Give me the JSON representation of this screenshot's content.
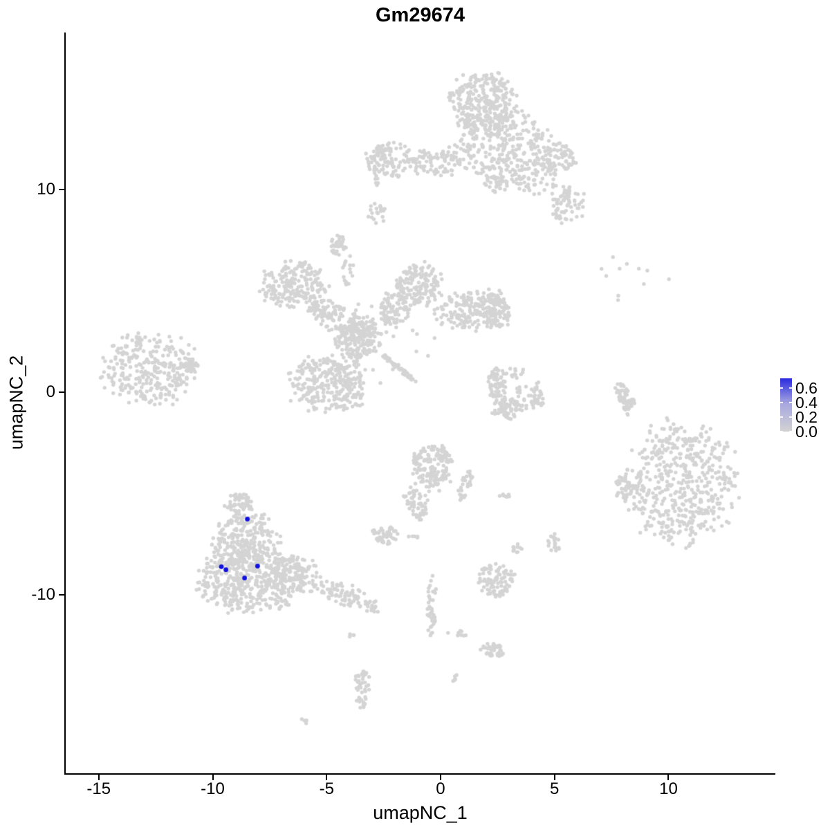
{
  "chart_data": {
    "type": "scatter",
    "title": "Gm29674",
    "xlabel": "umapNC_1",
    "ylabel": "umapNC_2",
    "x_ticks": [
      -15,
      -10,
      -5,
      0,
      5,
      10
    ],
    "y_ticks": [
      10,
      0,
      -10
    ],
    "xlim": [
      -16.45,
      14.66
    ],
    "ylim": [
      -18.8,
      17.7
    ],
    "grid": false,
    "colors": {
      "point_low": "#D4D4D4",
      "point_high": "#1010E0",
      "legend_low": "#D3D3D3",
      "legend_mid": "#A8A8DF",
      "legend_high": "#2B2BDF"
    },
    "legend": {
      "position": "right",
      "tick_labels": [
        "0.6",
        "0.4",
        "0.2",
        "0.0"
      ],
      "tick_values": [
        0.6,
        0.4,
        0.2,
        0.0
      ],
      "max_value": 0.72
    },
    "highlighted_points": [
      {
        "x": -8.48,
        "y": -6.26,
        "value_approx": 0.6
      },
      {
        "x": -9.62,
        "y": -8.61,
        "value_approx": 0.6
      },
      {
        "x": -9.42,
        "y": -8.76,
        "value_approx": 0.6
      },
      {
        "x": -8.03,
        "y": -8.58,
        "value_approx": 0.6
      },
      {
        "x": -8.6,
        "y": -9.17,
        "value_approx": 0.6
      }
    ],
    "background_clusters": [
      {
        "name": "top-lobe",
        "cx": 1.85,
        "cy": 14.25,
        "rx": 1.4,
        "ry": 1.5,
        "rot": 0,
        "n": 280
      },
      {
        "name": "top-body",
        "cx": 2.67,
        "cy": 12.2,
        "rx": 2.0,
        "ry": 1.8,
        "rot": 0,
        "n": 320
      },
      {
        "name": "top-left-band",
        "cx": -0.2,
        "cy": 11.35,
        "rx": 1.2,
        "ry": 0.7,
        "rot": 0,
        "n": 90
      },
      {
        "name": "top-left-blob",
        "cx": -2.25,
        "cy": 11.45,
        "rx": 1.0,
        "ry": 0.85,
        "rot": 0,
        "n": 110
      },
      {
        "name": "top-arm-joint",
        "cx": 4.2,
        "cy": 10.5,
        "rx": 0.9,
        "ry": 1.0,
        "rot": 0,
        "n": 60
      },
      {
        "name": "top-right-knot-upper",
        "cx": 5.15,
        "cy": 11.5,
        "rx": 0.85,
        "ry": 0.75,
        "rot": 0,
        "n": 70
      },
      {
        "name": "top-right-knot-lower",
        "cx": 5.55,
        "cy": 9.2,
        "rx": 0.75,
        "ry": 0.95,
        "rot": 0,
        "n": 70
      },
      {
        "name": "top-body-fringe",
        "cx": 2.45,
        "cy": 10.25,
        "rx": 0.55,
        "ry": 0.4,
        "rot": 0,
        "n": 25
      },
      {
        "name": "top-chain-dots",
        "cx": -2.85,
        "cy": 10.3,
        "rx": 0.12,
        "ry": 0.42,
        "rot": 0,
        "n": 6
      },
      {
        "name": "top-small-blob",
        "cx": -2.8,
        "cy": 8.85,
        "rx": 0.4,
        "ry": 0.5,
        "rot": 0,
        "n": 20
      },
      {
        "name": "mid-upperleft-lobe",
        "cx": -6.45,
        "cy": 5.25,
        "rx": 1.45,
        "ry": 1.1,
        "rot": 0,
        "n": 200
      },
      {
        "name": "mid-top-knob",
        "cx": -4.5,
        "cy": 7.25,
        "rx": 0.36,
        "ry": 0.44,
        "rot": 0,
        "n": 30
      },
      {
        "name": "mid-knob-chain",
        "cx": -4.05,
        "cy": 5.85,
        "rx": 0.22,
        "ry": 0.85,
        "rot": 0,
        "n": 16
      },
      {
        "name": "mid-left-arm",
        "cx": -4.5,
        "cy": 3.6,
        "rx": 1.45,
        "ry": 0.7,
        "rot": -28,
        "n": 130
      },
      {
        "name": "mid-center-node",
        "cx": -3.5,
        "cy": 2.75,
        "rx": 0.85,
        "ry": 1.0,
        "rot": 0,
        "n": 160
      },
      {
        "name": "mid-upright-arm",
        "cx": -2.05,
        "cy": 4.1,
        "rx": 0.7,
        "ry": 0.8,
        "rot": 0,
        "n": 80
      },
      {
        "name": "mid-top-lobe",
        "cx": -0.95,
        "cy": 5.3,
        "rx": 1.0,
        "ry": 1.05,
        "rot": 0,
        "n": 160
      },
      {
        "name": "mid-right-arm",
        "cx": 1.3,
        "cy": 4.05,
        "rx": 1.6,
        "ry": 0.95,
        "rot": 7,
        "n": 170
      },
      {
        "name": "mid-right-node",
        "cx": 2.4,
        "cy": 4.0,
        "rx": 0.7,
        "ry": 0.9,
        "rot": 0,
        "n": 90
      },
      {
        "name": "mid-down-arm",
        "cx": -4.0,
        "cy": 1.1,
        "rx": 0.6,
        "ry": 1.9,
        "rot": 8,
        "n": 110
      },
      {
        "name": "mid-bottomleft-lobe",
        "cx": -5.15,
        "cy": 0.35,
        "rx": 1.45,
        "ry": 1.35,
        "rot": 0,
        "n": 230
      },
      {
        "name": "mid-streak",
        "cx": -1.85,
        "cy": 1.2,
        "rx": 0.95,
        "ry": 0.1,
        "rot": -43,
        "n": 55
      },
      {
        "name": "mid-halo",
        "cx": -2.3,
        "cy": 2.6,
        "rx": 2.4,
        "ry": 2.0,
        "rot": 0,
        "n": 28
      },
      {
        "name": "crescent-top",
        "cx": 2.45,
        "cy": 0.4,
        "rx": 0.42,
        "ry": 0.85,
        "rot": 0,
        "n": 60
      },
      {
        "name": "crescent-bottom",
        "cx": 2.9,
        "cy": -0.8,
        "rx": 0.62,
        "ry": 0.55,
        "rot": 0,
        "n": 70
      },
      {
        "name": "crescent-right",
        "cx": 3.9,
        "cy": -0.25,
        "rx": 0.62,
        "ry": 0.75,
        "rot": 0,
        "n": 50
      },
      {
        "name": "crescent-top-dots",
        "cx": 3.1,
        "cy": 0.95,
        "rx": 0.55,
        "ry": 0.28,
        "rot": 0,
        "n": 14
      },
      {
        "name": "comma",
        "cx": 8.05,
        "cy": -0.25,
        "rx": 0.28,
        "ry": 0.9,
        "rot": 15,
        "n": 50
      },
      {
        "name": "comma-tail",
        "cx": 8.45,
        "cy": -0.6,
        "rx": 0.22,
        "ry": 0.25,
        "rot": 0,
        "n": 10
      },
      {
        "name": "sparse-upper-right",
        "cx": 8.6,
        "cy": 6.05,
        "rx": 1.55,
        "ry": 0.85,
        "rot": 0,
        "n": 9
      },
      {
        "name": "sparse-pair",
        "cx": 7.75,
        "cy": 4.65,
        "rx": 0.06,
        "ry": 0.22,
        "rot": 0,
        "n": 2
      },
      {
        "name": "left-cluster",
        "cx": -12.8,
        "cy": 1.1,
        "rx": 2.05,
        "ry": 1.7,
        "rot": 0,
        "n": 300
      },
      {
        "name": "left-cluster-tip",
        "cx": -11.05,
        "cy": 1.3,
        "rx": 0.45,
        "ry": 0.35,
        "rot": 0,
        "n": 40
      },
      {
        "name": "right-cluster",
        "cx": 10.55,
        "cy": -4.55,
        "rx": 2.35,
        "ry": 2.9,
        "rot": 0,
        "n": 520
      },
      {
        "name": "right-cluster-arm",
        "cx": 8.05,
        "cy": -4.65,
        "rx": 0.4,
        "ry": 0.62,
        "rot": 0,
        "n": 35
      },
      {
        "name": "bottomleft-apex",
        "cx": -8.85,
        "cy": -5.55,
        "rx": 0.55,
        "ry": 0.62,
        "rot": 0,
        "n": 60
      },
      {
        "name": "bottomleft-mid",
        "cx": -8.55,
        "cy": -7.45,
        "rx": 1.4,
        "ry": 1.4,
        "rot": 0,
        "n": 280
      },
      {
        "name": "bottomleft-main",
        "cx": -8.4,
        "cy": -9.3,
        "rx": 2.2,
        "ry": 1.55,
        "rot": 0,
        "n": 420
      },
      {
        "name": "bottomleft-shoulder",
        "cx": -6.45,
        "cy": -9.0,
        "rx": 1.05,
        "ry": 0.95,
        "rot": 0,
        "n": 110
      },
      {
        "name": "bottomleft-tail",
        "cx": -4.0,
        "cy": -10.05,
        "rx": 1.6,
        "ry": 0.48,
        "rot": -22,
        "n": 90
      },
      {
        "name": "centerbottom-teardrop",
        "cx": -0.35,
        "cy": -3.7,
        "rx": 0.88,
        "ry": 1.1,
        "rot": 0,
        "n": 150
      },
      {
        "name": "centerbottom-tail-left",
        "cx": -1.1,
        "cy": -5.4,
        "rx": 0.5,
        "ry": 0.85,
        "rot": 20,
        "n": 60
      },
      {
        "name": "centerbottom-tail-right",
        "cx": 1.1,
        "cy": -4.6,
        "rx": 0.25,
        "ry": 0.75,
        "rot": -15,
        "n": 30
      },
      {
        "name": "small-flat",
        "cx": -2.4,
        "cy": -7.05,
        "rx": 0.6,
        "ry": 0.45,
        "rot": 0,
        "n": 45
      },
      {
        "name": "small-flat-dots",
        "cx": -1.25,
        "cy": -7.15,
        "rx": 0.3,
        "ry": 0.12,
        "rot": 0,
        "n": 5
      },
      {
        "name": "small-right-blob",
        "cx": 5.0,
        "cy": -7.4,
        "rx": 0.3,
        "ry": 0.42,
        "rot": 0,
        "n": 20
      },
      {
        "name": "small-blob",
        "cx": 3.35,
        "cy": -7.7,
        "rx": 0.22,
        "ry": 0.24,
        "rot": 0,
        "n": 10
      },
      {
        "name": "small-dash",
        "cx": 2.8,
        "cy": -5.15,
        "rx": 0.25,
        "ry": 0.16,
        "rot": 0,
        "n": 7
      },
      {
        "name": "small-round",
        "cx": 2.45,
        "cy": -9.3,
        "rx": 0.8,
        "ry": 0.85,
        "rot": 0,
        "n": 90
      },
      {
        "name": "chain-vertical",
        "cx": -0.4,
        "cy": -10.7,
        "rx": 0.2,
        "ry": 1.65,
        "rot": 0,
        "n": 40
      },
      {
        "name": "small-bottom",
        "cx": 2.3,
        "cy": -12.75,
        "rx": 0.5,
        "ry": 0.38,
        "rot": 0,
        "n": 45
      },
      {
        "name": "dots-row",
        "cx": 0.8,
        "cy": -11.95,
        "rx": 0.45,
        "ry": 0.18,
        "rot": 0,
        "n": 8
      },
      {
        "name": "dot-small",
        "cx": 0.65,
        "cy": -14.15,
        "rx": 0.16,
        "ry": 0.2,
        "rot": 0,
        "n": 6
      },
      {
        "name": "s-chain",
        "cx": -3.4,
        "cy": -14.6,
        "rx": 0.36,
        "ry": 1.0,
        "rot": 0,
        "n": 45
      },
      {
        "name": "dot-pair-left",
        "cx": -3.9,
        "cy": -12.05,
        "rx": 0.12,
        "ry": 0.24,
        "rot": 0,
        "n": 4
      },
      {
        "name": "dot-bottom",
        "cx": -6.0,
        "cy": -16.25,
        "rx": 0.2,
        "ry": 0.14,
        "rot": 0,
        "n": 4
      }
    ]
  }
}
